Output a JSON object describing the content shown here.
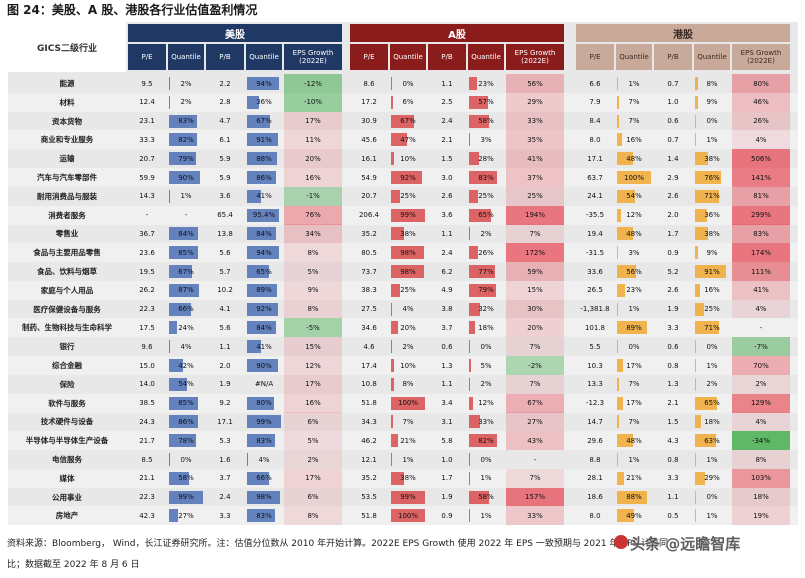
{
  "title": "图 24：美股、A 股、港股各行业估值盈利情况",
  "gics_header": "GICS二级行业",
  "markets": [
    {
      "name": "美股",
      "color": "#1f3864"
    },
    {
      "name": "A股",
      "color": "#8b1c1c"
    },
    {
      "name": "港股",
      "color": "#c9a99a"
    }
  ],
  "subheaders": [
    "P/E",
    "Quantile",
    "P/B",
    "Quantile",
    "EPS Growth (2022E)"
  ],
  "quantile_colors": {
    "us": "#4a6fb5",
    "a": "#d94b4b",
    "hk": "#f0a830"
  },
  "rows": [
    {
      "name": "能源",
      "us": [
        "9.5",
        "2%",
        "2.2",
        "94%",
        "-12%"
      ],
      "a": [
        "8.6",
        "0%",
        "1.1",
        "23%",
        "56%"
      ],
      "hk": [
        "6.6",
        "1%",
        "0.7",
        "8%",
        "80%"
      ]
    },
    {
      "name": "材料",
      "us": [
        "12.4",
        "2%",
        "2.8",
        "36%",
        "-10%"
      ],
      "a": [
        "17.2",
        "6%",
        "2.5",
        "57%",
        "29%"
      ],
      "hk": [
        "7.9",
        "7%",
        "1.0",
        "9%",
        "46%"
      ]
    },
    {
      "name": "资本货物",
      "us": [
        "23.1",
        "83%",
        "4.7",
        "67%",
        "17%"
      ],
      "a": [
        "30.9",
        "67%",
        "2.4",
        "58%",
        "33%"
      ],
      "hk": [
        "8.4",
        "7%",
        "0.6",
        "0%",
        "26%"
      ]
    },
    {
      "name": "商业和专业服务",
      "us": [
        "33.3",
        "82%",
        "6.1",
        "91%",
        "11%"
      ],
      "a": [
        "45.6",
        "47%",
        "2.1",
        "3%",
        "35%"
      ],
      "hk": [
        "8.0",
        "16%",
        "0.7",
        "1%",
        "4%"
      ]
    },
    {
      "name": "运输",
      "us": [
        "20.7",
        "79%",
        "5.9",
        "88%",
        "20%"
      ],
      "a": [
        "16.1",
        "10%",
        "1.5",
        "28%",
        "41%"
      ],
      "hk": [
        "17.1",
        "48%",
        "1.4",
        "38%",
        "506%"
      ]
    },
    {
      "name": "汽车与汽车零部件",
      "us": [
        "59.9",
        "90%",
        "5.9",
        "86%",
        "16%"
      ],
      "a": [
        "54.9",
        "92%",
        "3.0",
        "83%",
        "37%"
      ],
      "hk": [
        "63.7",
        "100%",
        "2.9",
        "76%",
        "141%"
      ]
    },
    {
      "name": "耐用消费品与服装",
      "us": [
        "14.3",
        "1%",
        "3.6",
        "41%",
        "-1%"
      ],
      "a": [
        "20.7",
        "25%",
        "2.6",
        "25%",
        "25%"
      ],
      "hk": [
        "24.1",
        "54%",
        "2.6",
        "71%",
        "81%"
      ]
    },
    {
      "name": "消费者服务",
      "us": [
        "-",
        "-",
        "65.4",
        "95.4%",
        "76%"
      ],
      "a": [
        "206.4",
        "99%",
        "3.6",
        "65%",
        "194%"
      ],
      "hk": [
        "-35.5",
        "12%",
        "2.0",
        "36%",
        "299%"
      ]
    },
    {
      "name": "零售业",
      "us": [
        "36.7",
        "84%",
        "13.8",
        "84%",
        "34%"
      ],
      "a": [
        "35.2",
        "38%",
        "1.1",
        "2%",
        "7%"
      ],
      "hk": [
        "19.4",
        "48%",
        "1.7",
        "38%",
        "83%"
      ]
    },
    {
      "name": "食品与主要用品零售",
      "us": [
        "23.6",
        "85%",
        "5.6",
        "94%",
        "8%"
      ],
      "a": [
        "80.5",
        "98%",
        "2.4",
        "26%",
        "172%"
      ],
      "hk": [
        "-31.5",
        "3%",
        "0.9",
        "9%",
        "174%"
      ]
    },
    {
      "name": "食品、饮料与烟草",
      "us": [
        "19.5",
        "67%",
        "5.7",
        "65%",
        "5%"
      ],
      "a": [
        "73.7",
        "98%",
        "6.2",
        "77%",
        "59%"
      ],
      "hk": [
        "33.6",
        "56%",
        "5.2",
        "91%",
        "111%"
      ]
    },
    {
      "name": "家庭与个人用品",
      "us": [
        "26.2",
        "87%",
        "10.2",
        "89%",
        "9%"
      ],
      "a": [
        "38.3",
        "25%",
        "4.9",
        "79%",
        "15%"
      ],
      "hk": [
        "26.5",
        "23%",
        "2.6",
        "16%",
        "41%"
      ]
    },
    {
      "name": "医疗保健设备与服务",
      "us": [
        "22.3",
        "66%",
        "4.1",
        "92%",
        "8%"
      ],
      "a": [
        "27.5",
        "4%",
        "3.8",
        "32%",
        "30%"
      ],
      "hk": [
        "-1,381.8",
        "1%",
        "1.9",
        "25%",
        "4%"
      ]
    },
    {
      "name": "制药、生物科技与生命科学",
      "us": [
        "17.5",
        "24%",
        "5.6",
        "84%",
        "-5%"
      ],
      "a": [
        "34.6",
        "20%",
        "3.7",
        "18%",
        "20%"
      ],
      "hk": [
        "101.8",
        "89%",
        "3.3",
        "71%",
        "-"
      ]
    },
    {
      "name": "银行",
      "us": [
        "9.6",
        "4%",
        "1.1",
        "41%",
        "15%"
      ],
      "a": [
        "4.6",
        "2%",
        "0.6",
        "0%",
        "7%"
      ],
      "hk": [
        "5.5",
        "0%",
        "0.6",
        "0%",
        "-7%"
      ]
    },
    {
      "name": "综合金融",
      "us": [
        "15.0",
        "42%",
        "2.0",
        "90%",
        "12%"
      ],
      "a": [
        "17.4",
        "10%",
        "1.3",
        "5%",
        "-2%"
      ],
      "hk": [
        "10.3",
        "17%",
        "0.8",
        "1%",
        "70%"
      ]
    },
    {
      "name": "保险",
      "us": [
        "14.0",
        "54%",
        "1.9",
        "#N/A",
        "17%"
      ],
      "a": [
        "10.8",
        "8%",
        "1.1",
        "2%",
        "7%"
      ],
      "hk": [
        "13.3",
        "7%",
        "1.3",
        "2%",
        "2%"
      ]
    },
    {
      "name": "软件与服务",
      "us": [
        "38.5",
        "85%",
        "9.2",
        "80%",
        "16%"
      ],
      "a": [
        "51.8",
        "100%",
        "3.4",
        "12%",
        "67%"
      ],
      "hk": [
        "-12.3",
        "17%",
        "2.1",
        "65%",
        "129%"
      ]
    },
    {
      "name": "技术硬件与设备",
      "us": [
        "24.3",
        "86%",
        "17.1",
        "99%",
        "6%"
      ],
      "a": [
        "34.3",
        "7%",
        "3.1",
        "33%",
        "27%"
      ],
      "hk": [
        "14.7",
        "7%",
        "1.5",
        "18%",
        "4%"
      ]
    },
    {
      "name": "半导体与半导体生产设备",
      "us": [
        "21.7",
        "78%",
        "5.3",
        "83%",
        "5%"
      ],
      "a": [
        "46.2",
        "21%",
        "5.8",
        "82%",
        "43%"
      ],
      "hk": [
        "29.6",
        "48%",
        "4.3",
        "63%",
        "-34%"
      ]
    },
    {
      "name": "电信服务",
      "us": [
        "8.5",
        "0%",
        "1.6",
        "4%",
        "2%"
      ],
      "a": [
        "12.1",
        "1%",
        "1.0",
        "0%",
        "-"
      ],
      "hk": [
        "8.8",
        "1%",
        "0.8",
        "1%",
        "8%"
      ]
    },
    {
      "name": "媒体",
      "us": [
        "21.1",
        "58%",
        "3.7",
        "66%",
        "17%"
      ],
      "a": [
        "35.2",
        "38%",
        "1.7",
        "1%",
        "7%"
      ],
      "hk": [
        "28.1",
        "21%",
        "3.3",
        "29%",
        "103%"
      ]
    },
    {
      "name": "公用事业",
      "us": [
        "22.3",
        "99%",
        "2.4",
        "98%",
        "6%"
      ],
      "a": [
        "53.5",
        "99%",
        "1.9",
        "58%",
        "157%"
      ],
      "hk": [
        "18.6",
        "88%",
        "1.1",
        "0%",
        "18%"
      ]
    },
    {
      "name": "房地产",
      "us": [
        "42.3",
        "27%",
        "3.3",
        "83%",
        "8%"
      ],
      "a": [
        "51.8",
        "100%",
        "0.9",
        "1%",
        "33%"
      ],
      "hk": [
        "8.0",
        "49%",
        "0.5",
        "1%",
        "19%"
      ]
    }
  ],
  "source_lines": [
    "资料来源：Bloomberg， Wind，长江证券研究所。注：估值分位数从 2010 年开始计算。2022E EPS Growth 使用 2022 年 EPS 一致预期与 2021 年 EPS 计算同",
    "比；数据截至 2022 年 8 月 6 日"
  ],
  "watermark": "头条 @远瞻智库"
}
